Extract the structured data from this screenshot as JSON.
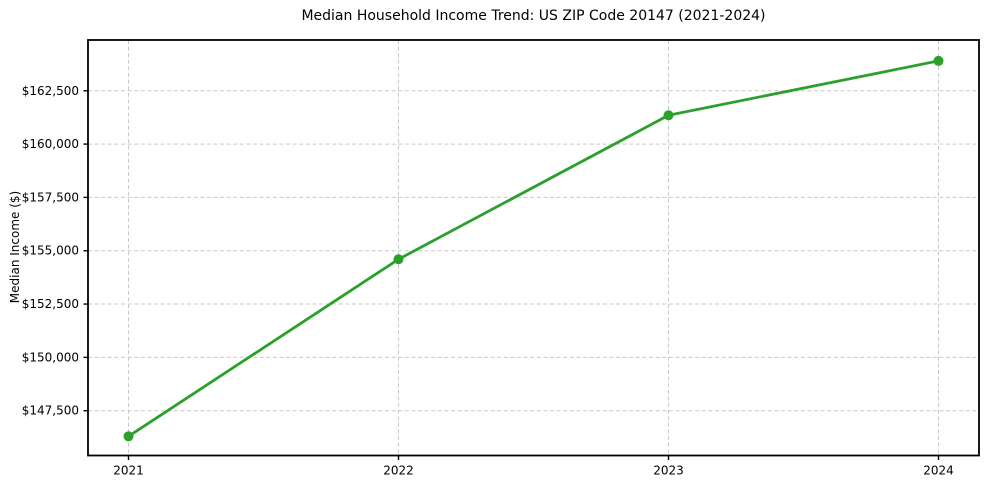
{
  "chart_data": {
    "type": "line",
    "title": "Median Household Income Trend: US ZIP Code 20147 (2021-2024)",
    "xlabel": "",
    "ylabel": "Median Income ($)",
    "x": [
      2021,
      2022,
      2023,
      2024
    ],
    "series": [
      {
        "name": "Median household income",
        "values": [
          146300,
          154600,
          161350,
          163900
        ],
        "color": "#2ca02c",
        "marker": "circle"
      }
    ],
    "x_ticks": [
      2021,
      2022,
      2023,
      2024
    ],
    "x_tick_labels": [
      "2021",
      "2022",
      "2023",
      "2024"
    ],
    "y_ticks": [
      147500,
      150000,
      152500,
      155000,
      157500,
      160000,
      162500
    ],
    "y_tick_labels": [
      "$147,500",
      "$150,000",
      "$152,500",
      "$155,000",
      "$157,500",
      "$160,000",
      "$162,500"
    ],
    "xlim": [
      2020.85,
      2024.15
    ],
    "ylim": [
      145400,
      164880
    ],
    "grid": true,
    "grid_style": "dashed",
    "legend": null,
    "colors": {
      "line": "#2ca02c",
      "grid": "#c9c9c9",
      "spine": "#000000",
      "tick": "#000000",
      "background": "#ffffff",
      "text": "#000000"
    }
  }
}
